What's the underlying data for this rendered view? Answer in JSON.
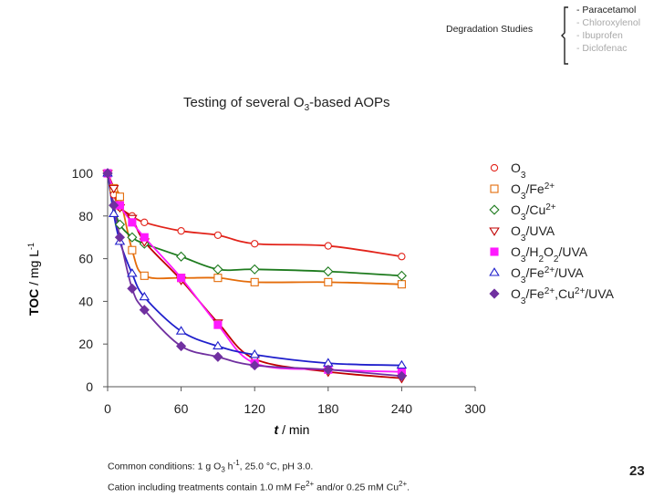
{
  "header": {
    "section_label": "Degradation Studies",
    "nav_items": [
      {
        "text": "- Paracetamol",
        "color": "#222222"
      },
      {
        "text": "- Chloroxylenol",
        "color": "#a9a9a9"
      },
      {
        "text": "- Ibuprofen",
        "color": "#a9a9a9"
      },
      {
        "text": "- Diclofenac",
        "color": "#a9a9a9"
      }
    ]
  },
  "slide": {
    "title_pre": "Testing of several O",
    "title_sub": "3",
    "title_post": "-based AOPs",
    "footnote_line1_pre": "Common conditions:  1 g O",
    "footnote_line1_sub": "3",
    "footnote_line1_mid": " h",
    "footnote_line1_sup": "-1",
    "footnote_line1_post": ", 25.0 °C, pH 3.0.",
    "footnote_line2_pre": "Cation including treatments contain 1.0 mM Fe",
    "footnote_line2_sup1": "2+",
    "footnote_line2_mid": " and/or 0.25 mM Cu",
    "footnote_line2_sup2": "2+",
    "footnote_line2_post": ".",
    "page_number": "23"
  },
  "chart_data": {
    "type": "scatter",
    "title": "",
    "xlabel_italic": "t",
    "xlabel_rest": " / min",
    "ylabel_bold": "TOC",
    "ylabel_rest": " / mg L",
    "ylabel_sup": "-1",
    "xlim": [
      0,
      300
    ],
    "ylim": [
      0,
      100
    ],
    "xticks": [
      0,
      60,
      120,
      180,
      240,
      300
    ],
    "yticks": [
      0,
      20,
      40,
      60,
      80,
      100
    ],
    "grid": false,
    "legend_position": "right",
    "series": [
      {
        "name": "O3",
        "legend": [
          [
            "O",
            ""
          ],
          [
            "3",
            "sub"
          ]
        ],
        "marker": "circle-open",
        "color": "#e2231a",
        "x": [
          0,
          5,
          10,
          20,
          30,
          60,
          90,
          120,
          180,
          240
        ],
        "y": [
          100,
          90,
          84,
          80,
          77,
          73,
          71,
          67,
          66,
          61
        ]
      },
      {
        "name": "O3/Fe2+",
        "legend": [
          [
            "O",
            ""
          ],
          [
            "3",
            "sub"
          ],
          [
            "/Fe",
            ""
          ],
          [
            "2+",
            "sup"
          ]
        ],
        "marker": "square-open",
        "color": "#e46c0a",
        "x": [
          0,
          5,
          10,
          20,
          30,
          60,
          90,
          120,
          180,
          240
        ],
        "y": [
          100,
          93,
          89,
          64,
          52,
          51,
          51,
          49,
          49,
          48
        ]
      },
      {
        "name": "O3/Cu2+",
        "legend": [
          [
            "O",
            ""
          ],
          [
            "3",
            "sub"
          ],
          [
            "/Cu",
            ""
          ],
          [
            "2+",
            "sup"
          ]
        ],
        "marker": "diamond-open",
        "color": "#1e7b1e",
        "x": [
          0,
          5,
          10,
          20,
          30,
          60,
          90,
          120,
          180,
          240
        ],
        "y": [
          100,
          85,
          76,
          70,
          67,
          61,
          55,
          55,
          54,
          52
        ]
      },
      {
        "name": "O3/UVA",
        "legend": [
          [
            "O",
            ""
          ],
          [
            "3",
            "sub"
          ],
          [
            "/UVA",
            ""
          ]
        ],
        "marker": "triangle-down-open",
        "color": "#c00000",
        "x": [
          0,
          5,
          10,
          20,
          30,
          60,
          90,
          120,
          180,
          240
        ],
        "y": [
          100,
          93,
          84,
          79,
          68,
          50,
          30,
          13,
          7,
          4
        ]
      },
      {
        "name": "O3/H2O2/UVA",
        "legend": [
          [
            "O",
            ""
          ],
          [
            "3",
            "sub"
          ],
          [
            "/H",
            ""
          ],
          [
            "2",
            "sub"
          ],
          [
            "O",
            ""
          ],
          [
            "2",
            "sub"
          ],
          [
            "/UVA",
            ""
          ]
        ],
        "marker": "square-filled",
        "color": "#ff19ff",
        "x": [
          0,
          10,
          20,
          30,
          60,
          90,
          120,
          180,
          240
        ],
        "y": [
          100,
          85,
          77,
          70,
          51,
          29,
          11,
          8,
          7
        ]
      },
      {
        "name": "O3/Fe2+/UVA",
        "legend": [
          [
            "O",
            ""
          ],
          [
            "3",
            "sub"
          ],
          [
            "/Fe",
            ""
          ],
          [
            "2+",
            "sup"
          ],
          [
            "/UVA",
            ""
          ]
        ],
        "marker": "triangle-up-open",
        "color": "#1f1fcc",
        "x": [
          0,
          5,
          10,
          20,
          30,
          60,
          90,
          120,
          180,
          240
        ],
        "y": [
          100,
          81,
          68,
          53,
          42,
          26,
          19,
          15,
          11,
          10
        ]
      },
      {
        "name": "O3/Fe2+,Cu2+/UVA",
        "legend": [
          [
            "O",
            ""
          ],
          [
            "3",
            "sub"
          ],
          [
            "/Fe",
            ""
          ],
          [
            "2+",
            "sup"
          ],
          [
            ",Cu",
            ""
          ],
          [
            "2+",
            "sup"
          ],
          [
            "/UVA",
            ""
          ]
        ],
        "marker": "diamond-filled",
        "color": "#7030a0",
        "x": [
          0,
          5,
          10,
          20,
          30,
          60,
          90,
          120,
          180,
          240
        ],
        "y": [
          100,
          85,
          70,
          46,
          36,
          19,
          14,
          10,
          8,
          5
        ]
      }
    ]
  }
}
